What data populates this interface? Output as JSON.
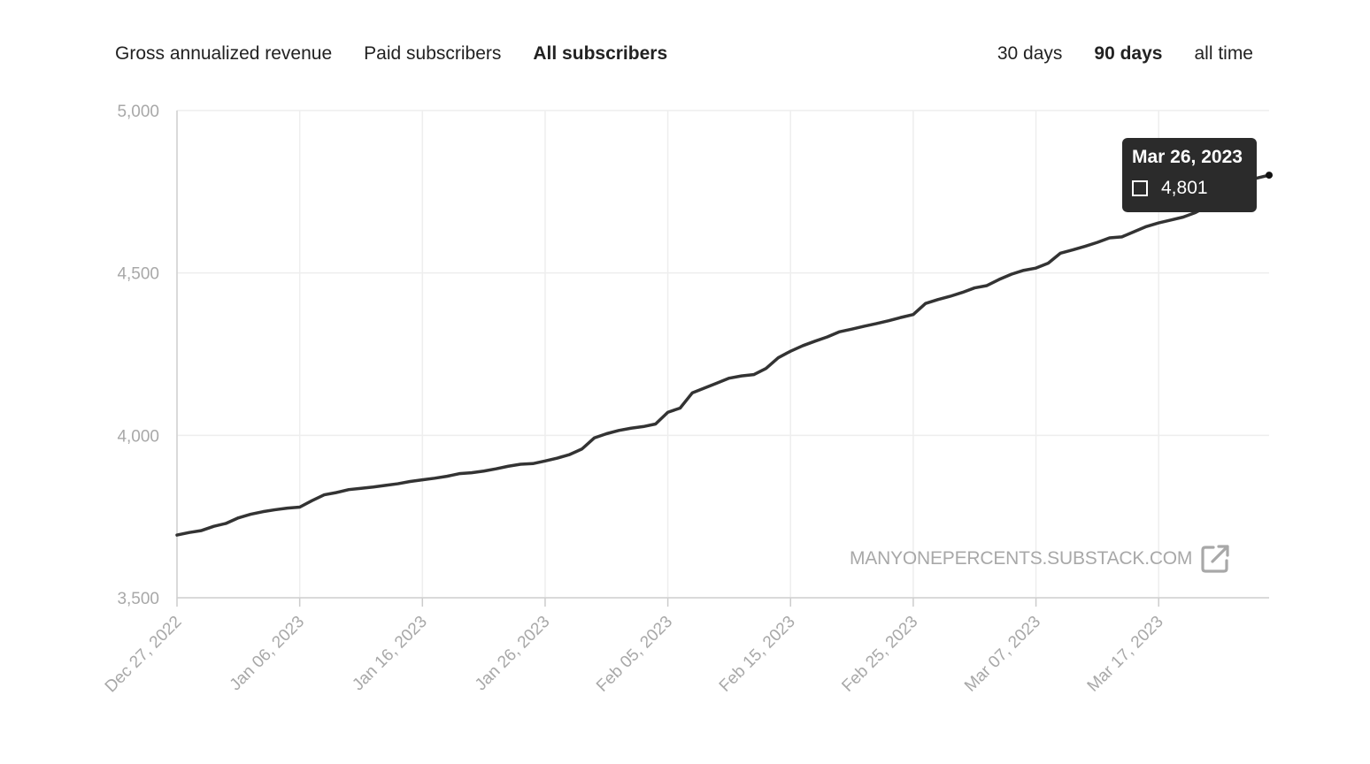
{
  "metric_tabs": [
    {
      "label": "Gross annualized revenue",
      "active": false
    },
    {
      "label": "Paid subscribers",
      "active": false
    },
    {
      "label": "All subscribers",
      "active": true
    }
  ],
  "range_tabs": [
    {
      "label": "30 days",
      "active": false
    },
    {
      "label": "90 days",
      "active": true
    },
    {
      "label": "all time",
      "active": false
    }
  ],
  "watermark": {
    "text": "MANYONEPERCENTS.SUBSTACK.COM",
    "icon": "external-link-icon"
  },
  "tooltip": {
    "date": "Mar 26, 2023",
    "value": "4,801"
  },
  "colors": {
    "line": "#333333",
    "grid": "#eeeeee",
    "axis_text": "#a8a8a8",
    "tooltip_bg": "#2b2b2b"
  },
  "chart_data": {
    "type": "line",
    "title": "",
    "xlabel": "",
    "ylabel": "",
    "ylim": [
      3500,
      5000
    ],
    "yticks": [
      "3,500",
      "4,000",
      "4,500",
      "5,000"
    ],
    "ytick_values": [
      3500,
      4000,
      4500,
      5000
    ],
    "xlim": [
      "2022-12-27",
      "2023-03-26"
    ],
    "xticks": [
      "Dec 27, 2022",
      "Jan 06, 2023",
      "Jan 16, 2023",
      "Jan 26, 2023",
      "Feb 05, 2023",
      "Feb 15, 2023",
      "Feb 25, 2023",
      "Mar 07, 2023",
      "Mar 17, 2023"
    ],
    "xtick_dates": [
      "2022-12-27",
      "2023-01-06",
      "2023-01-16",
      "2023-01-26",
      "2023-02-05",
      "2023-02-15",
      "2023-02-25",
      "2023-03-07",
      "2023-03-17"
    ],
    "grid": true,
    "legend": false,
    "series": [
      {
        "name": "All subscribers",
        "x": [
          "2022-12-27",
          "2022-12-28",
          "2022-12-29",
          "2022-12-30",
          "2022-12-31",
          "2023-01-01",
          "2023-01-02",
          "2023-01-03",
          "2023-01-04",
          "2023-01-05",
          "2023-01-06",
          "2023-01-07",
          "2023-01-08",
          "2023-01-09",
          "2023-01-10",
          "2023-01-11",
          "2023-01-12",
          "2023-01-13",
          "2023-01-14",
          "2023-01-15",
          "2023-01-16",
          "2023-01-17",
          "2023-01-18",
          "2023-01-19",
          "2023-01-20",
          "2023-01-21",
          "2023-01-22",
          "2023-01-23",
          "2023-01-24",
          "2023-01-25",
          "2023-01-26",
          "2023-01-27",
          "2023-01-28",
          "2023-01-29",
          "2023-01-30",
          "2023-01-31",
          "2023-02-01",
          "2023-02-02",
          "2023-02-03",
          "2023-02-04",
          "2023-02-05",
          "2023-02-06",
          "2023-02-07",
          "2023-02-08",
          "2023-02-09",
          "2023-02-10",
          "2023-02-11",
          "2023-02-12",
          "2023-02-13",
          "2023-02-14",
          "2023-02-15",
          "2023-02-16",
          "2023-02-17",
          "2023-02-18",
          "2023-02-19",
          "2023-02-20",
          "2023-02-21",
          "2023-02-22",
          "2023-02-23",
          "2023-02-24",
          "2023-02-25",
          "2023-02-26",
          "2023-02-27",
          "2023-02-28",
          "2023-03-01",
          "2023-03-02",
          "2023-03-03",
          "2023-03-04",
          "2023-03-05",
          "2023-03-06",
          "2023-03-07",
          "2023-03-08",
          "2023-03-09",
          "2023-03-10",
          "2023-03-11",
          "2023-03-12",
          "2023-03-13",
          "2023-03-14",
          "2023-03-15",
          "2023-03-16",
          "2023-03-17",
          "2023-03-18",
          "2023-03-19",
          "2023-03-20",
          "2023-03-21",
          "2023-03-22",
          "2023-03-23",
          "2023-03-24",
          "2023-03-25",
          "2023-03-26"
        ],
        "y": [
          3693,
          3701,
          3707,
          3720,
          3729,
          3746,
          3757,
          3765,
          3771,
          3776,
          3779,
          3799,
          3817,
          3824,
          3833,
          3837,
          3841,
          3846,
          3851,
          3858,
          3863,
          3868,
          3874,
          3882,
          3885,
          3890,
          3897,
          3905,
          3911,
          3913,
          3921,
          3930,
          3941,
          3958,
          3992,
          4005,
          4015,
          4022,
          4027,
          4035,
          4071,
          4084,
          4131,
          4146,
          4161,
          4176,
          4183,
          4187,
          4206,
          4239,
          4259,
          4276,
          4290,
          4303,
          4319,
          4327,
          4336,
          4344,
          4353,
          4363,
          4372,
          4406,
          4418,
          4428,
          4440,
          4454,
          4461,
          4480,
          4496,
          4508,
          4515,
          4530,
          4561,
          4571,
          4582,
          4594,
          4608,
          4611,
          4627,
          4643,
          4654,
          4663,
          4672,
          4686,
          4706,
          4745,
          4772,
          4782,
          4792,
          4801
        ]
      }
    ]
  }
}
